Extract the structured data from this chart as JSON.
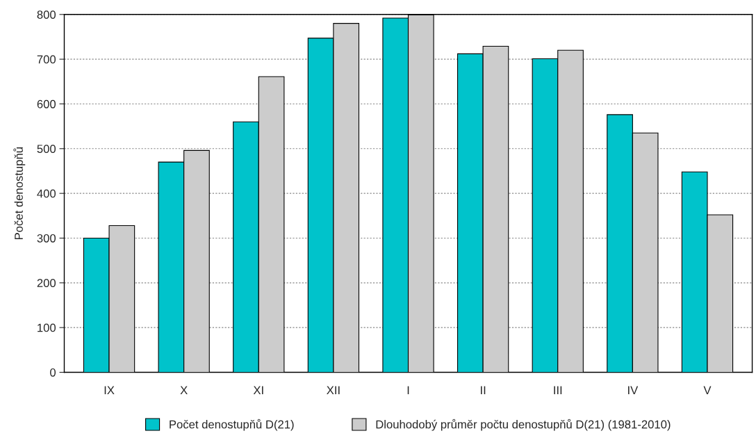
{
  "chart_data": {
    "type": "bar",
    "ylabel": "Počet denostupňů",
    "categories": [
      "IX",
      "X",
      "XI",
      "XII",
      "I",
      "II",
      "III",
      "IV",
      "V"
    ],
    "series": [
      {
        "name": "Počet denostupňů D(21)",
        "color": "#00c3cb",
        "values": [
          300,
          470,
          560,
          747,
          792,
          712,
          701,
          576,
          448
        ]
      },
      {
        "name": "Dlouhodobý průměr počtu denostupňů D(21) (1981-2010)",
        "color": "#cccccc",
        "values": [
          328,
          496,
          661,
          780,
          799,
          729,
          720,
          535,
          352
        ]
      }
    ],
    "ylim": [
      0,
      800
    ],
    "yticks": [
      0,
      100,
      200,
      300,
      400,
      500,
      600,
      700,
      800
    ],
    "grid": "y",
    "legend": "bottom"
  }
}
